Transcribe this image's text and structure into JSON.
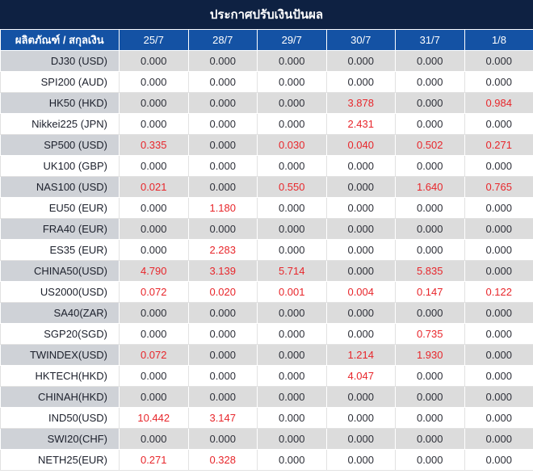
{
  "title": "ประกาศปรับเงินปันผล",
  "chart_data": {
    "type": "table",
    "title": "ประกาศปรับเงินปันผล",
    "product_header": "ผลิตภัณฑ์ / สกุลเงิน",
    "columns": [
      "25/7",
      "28/7",
      "29/7",
      "30/7",
      "31/7",
      "1/8"
    ],
    "rows": [
      {
        "product": "DJ30 (USD)",
        "values": [
          "0.000",
          "0.000",
          "0.000",
          "0.000",
          "0.000",
          "0.000"
        ],
        "red": [
          false,
          false,
          false,
          false,
          false,
          false
        ]
      },
      {
        "product": "SPI200 (AUD)",
        "values": [
          "0.000",
          "0.000",
          "0.000",
          "0.000",
          "0.000",
          "0.000"
        ],
        "red": [
          false,
          false,
          false,
          false,
          false,
          false
        ]
      },
      {
        "product": "HK50 (HKD)",
        "values": [
          "0.000",
          "0.000",
          "0.000",
          "3.878",
          "0.000",
          "0.984"
        ],
        "red": [
          false,
          false,
          false,
          true,
          false,
          true
        ]
      },
      {
        "product": "Nikkei225 (JPN)",
        "values": [
          "0.000",
          "0.000",
          "0.000",
          "2.431",
          "0.000",
          "0.000"
        ],
        "red": [
          false,
          false,
          false,
          true,
          false,
          false
        ]
      },
      {
        "product": "SP500 (USD)",
        "values": [
          "0.335",
          "0.000",
          "0.030",
          "0.040",
          "0.502",
          "0.271"
        ],
        "red": [
          true,
          false,
          true,
          true,
          true,
          true
        ]
      },
      {
        "product": "UK100 (GBP)",
        "values": [
          "0.000",
          "0.000",
          "0.000",
          "0.000",
          "0.000",
          "0.000"
        ],
        "red": [
          false,
          false,
          false,
          false,
          false,
          false
        ]
      },
      {
        "product": "NAS100 (USD)",
        "values": [
          "0.021",
          "0.000",
          "0.550",
          "0.000",
          "1.640",
          "0.765"
        ],
        "red": [
          true,
          false,
          true,
          false,
          true,
          true
        ]
      },
      {
        "product": "EU50 (EUR)",
        "values": [
          "0.000",
          "1.180",
          "0.000",
          "0.000",
          "0.000",
          "0.000"
        ],
        "red": [
          false,
          true,
          false,
          false,
          false,
          false
        ]
      },
      {
        "product": "FRA40 (EUR)",
        "values": [
          "0.000",
          "0.000",
          "0.000",
          "0.000",
          "0.000",
          "0.000"
        ],
        "red": [
          false,
          false,
          false,
          false,
          false,
          false
        ]
      },
      {
        "product": "ES35 (EUR)",
        "values": [
          "0.000",
          "2.283",
          "0.000",
          "0.000",
          "0.000",
          "0.000"
        ],
        "red": [
          false,
          true,
          false,
          false,
          false,
          false
        ]
      },
      {
        "product": "CHINA50(USD)",
        "values": [
          "4.790",
          "3.139",
          "5.714",
          "0.000",
          "5.835",
          "0.000"
        ],
        "red": [
          true,
          true,
          true,
          false,
          true,
          false
        ]
      },
      {
        "product": "US2000(USD)",
        "values": [
          "0.072",
          "0.020",
          "0.001",
          "0.004",
          "0.147",
          "0.122"
        ],
        "red": [
          true,
          true,
          true,
          true,
          true,
          true
        ]
      },
      {
        "product": "SA40(ZAR)",
        "values": [
          "0.000",
          "0.000",
          "0.000",
          "0.000",
          "0.000",
          "0.000"
        ],
        "red": [
          false,
          false,
          false,
          false,
          false,
          false
        ]
      },
      {
        "product": "SGP20(SGD)",
        "values": [
          "0.000",
          "0.000",
          "0.000",
          "0.000",
          "0.735",
          "0.000"
        ],
        "red": [
          false,
          false,
          false,
          false,
          true,
          false
        ]
      },
      {
        "product": "TWINDEX(USD)",
        "values": [
          "0.072",
          "0.000",
          "0.000",
          "1.214",
          "1.930",
          "0.000"
        ],
        "red": [
          true,
          false,
          false,
          true,
          true,
          false
        ]
      },
      {
        "product": "HKTECH(HKD)",
        "values": [
          "0.000",
          "0.000",
          "0.000",
          "4.047",
          "0.000",
          "0.000"
        ],
        "red": [
          false,
          false,
          false,
          true,
          false,
          false
        ]
      },
      {
        "product": "CHINAH(HKD)",
        "values": [
          "0.000",
          "0.000",
          "0.000",
          "0.000",
          "0.000",
          "0.000"
        ],
        "red": [
          false,
          false,
          false,
          false,
          false,
          false
        ]
      },
      {
        "product": "IND50(USD)",
        "values": [
          "10.442",
          "3.147",
          "0.000",
          "0.000",
          "0.000",
          "0.000"
        ],
        "red": [
          true,
          true,
          false,
          false,
          false,
          false
        ]
      },
      {
        "product": "SWI20(CHF)",
        "values": [
          "0.000",
          "0.000",
          "0.000",
          "0.000",
          "0.000",
          "0.000"
        ],
        "red": [
          false,
          false,
          false,
          false,
          false,
          false
        ]
      },
      {
        "product": "NETH25(EUR)",
        "values": [
          "0.271",
          "0.328",
          "0.000",
          "0.000",
          "0.000",
          "0.000"
        ],
        "red": [
          true,
          true,
          false,
          false,
          false,
          false
        ]
      }
    ],
    "layout": {
      "legend": "none",
      "grid": "on",
      "alternating_rows": true
    }
  },
  "colors": {
    "title_bar_bg": "#0e2142",
    "header_bg": "#1452a4",
    "header_text": "#ffffff",
    "highlight_red": "#e8262b",
    "value_text": "#2e3039",
    "product_text": "#1c202c",
    "row_alt_product_bg": "#cfd2d7",
    "row_alt_value_bg": "#dcdcdc",
    "row_even_bg": "#ffffff"
  }
}
